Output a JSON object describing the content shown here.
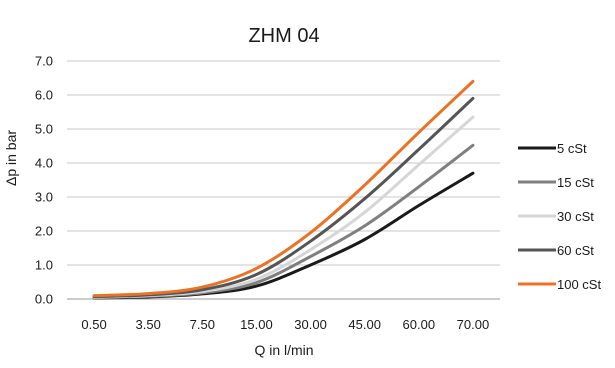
{
  "chart_data": {
    "type": "line",
    "title": "ZHM 04",
    "xlabel": "Q in l/min",
    "ylabel": "Δp in bar",
    "categories": [
      "0.50",
      "3.50",
      "7.50",
      "15.00",
      "30.00",
      "45.00",
      "60.00",
      "70.00"
    ],
    "ylim": [
      0,
      7
    ],
    "yticks": [
      "0.0",
      "1.0",
      "2.0",
      "3.0",
      "4.0",
      "5.0",
      "6.0",
      "7.0"
    ],
    "grid": true,
    "legend_position": "right",
    "series": [
      {
        "name": "5 cSt",
        "color": "#1a1a1a",
        "values": [
          0.03,
          0.06,
          0.15,
          0.38,
          1.0,
          1.75,
          2.75,
          3.7
        ]
      },
      {
        "name": "15 cSt",
        "color": "#7f7f7f",
        "values": [
          0.04,
          0.08,
          0.18,
          0.48,
          1.25,
          2.15,
          3.3,
          4.52
        ]
      },
      {
        "name": "30 cSt",
        "color": "#d6d6d6",
        "values": [
          0.05,
          0.1,
          0.22,
          0.58,
          1.45,
          2.55,
          3.95,
          5.35
        ]
      },
      {
        "name": "60 cSt",
        "color": "#555555",
        "values": [
          0.07,
          0.12,
          0.27,
          0.72,
          1.7,
          2.95,
          4.4,
          5.9
        ]
      },
      {
        "name": "100 cSt",
        "color": "#ed7125",
        "values": [
          0.1,
          0.16,
          0.35,
          0.9,
          1.95,
          3.35,
          4.9,
          6.4
        ]
      }
    ]
  }
}
